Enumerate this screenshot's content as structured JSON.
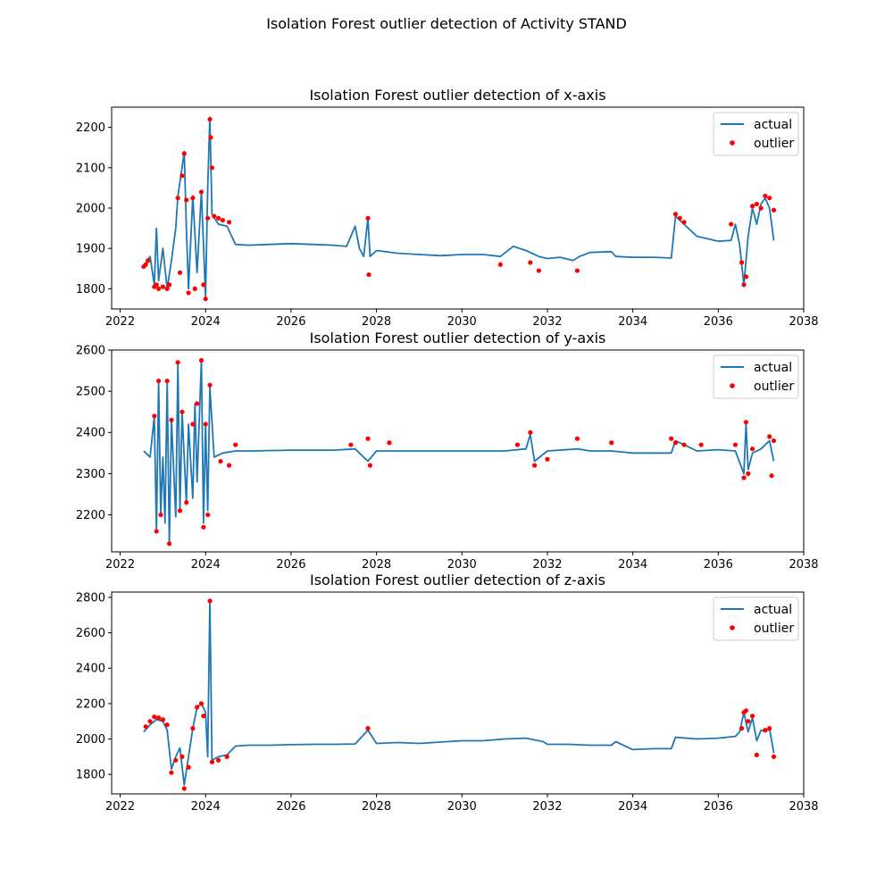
{
  "suptitle": "Isolation Forest outlier detection of Activity STAND",
  "colors": {
    "actual": "#1f77b4",
    "outlier": "#ff0000",
    "axes": "#000000"
  },
  "chart_data": [
    {
      "type": "line",
      "title": "Isolation Forest outlier detection of x-axis",
      "xlabel": "",
      "ylabel": "",
      "xlim": [
        2021.8,
        2038
      ],
      "ylim": [
        1750,
        2250
      ],
      "xticks": [
        2022,
        2024,
        2026,
        2028,
        2030,
        2032,
        2034,
        2036,
        2038
      ],
      "yticks": [
        1800,
        1900,
        2000,
        2100,
        2200
      ],
      "legend": {
        "position": "top-right",
        "entries": [
          "actual",
          "outlier"
        ]
      },
      "grid": false,
      "series": [
        {
          "name": "actual",
          "x": [
            2022.55,
            2022.7,
            2022.8,
            2022.85,
            2022.9,
            2023.0,
            2023.1,
            2023.2,
            2023.3,
            2023.35,
            2023.45,
            2023.5,
            2023.55,
            2023.6,
            2023.7,
            2023.8,
            2023.9,
            2024.0,
            2024.05,
            2024.1,
            2024.15,
            2024.3,
            2024.5,
            2024.7,
            2025.0,
            2025.5,
            2026.0,
            2026.5,
            2027.0,
            2027.3,
            2027.5,
            2027.6,
            2027.7,
            2027.8,
            2027.85,
            2028.0,
            2028.5,
            2029.0,
            2029.5,
            2030.0,
            2030.5,
            2030.9,
            2031.2,
            2031.5,
            2031.8,
            2032.0,
            2032.3,
            2032.6,
            2032.75,
            2033.0,
            2033.5,
            2033.6,
            2034.0,
            2034.5,
            2034.9,
            2035.0,
            2035.2,
            2035.5,
            2036.0,
            2036.3,
            2036.4,
            2036.5,
            2036.6,
            2036.7,
            2036.8,
            2036.9,
            2037.0,
            2037.1,
            2037.2,
            2037.3
          ],
          "y": [
            1855,
            1880,
            1810,
            1950,
            1820,
            1900,
            1800,
            1870,
            1950,
            2030,
            2100,
            2140,
            1950,
            1800,
            2030,
            1840,
            2040,
            1780,
            2050,
            2225,
            1985,
            1960,
            1955,
            1910,
            1908,
            1910,
            1912,
            1910,
            1908,
            1905,
            1955,
            1900,
            1880,
            1975,
            1880,
            1895,
            1888,
            1885,
            1882,
            1885,
            1885,
            1880,
            1905,
            1895,
            1880,
            1875,
            1878,
            1870,
            1880,
            1890,
            1892,
            1880,
            1878,
            1878,
            1876,
            1980,
            1960,
            1930,
            1918,
            1920,
            1960,
            1910,
            1810,
            1930,
            2000,
            1960,
            2010,
            2025,
            2000,
            1920
          ]
        },
        {
          "name": "outlier",
          "x": [
            2022.55,
            2022.6,
            2022.65,
            2022.8,
            2022.85,
            2022.9,
            2023.0,
            2023.1,
            2023.15,
            2023.35,
            2023.4,
            2023.45,
            2023.5,
            2023.55,
            2023.6,
            2023.7,
            2023.75,
            2023.9,
            2023.95,
            2024.0,
            2024.05,
            2024.1,
            2024.12,
            2024.15,
            2024.2,
            2024.3,
            2024.4,
            2024.55,
            2027.8,
            2027.82,
            2030.9,
            2031.6,
            2031.8,
            2032.7,
            2035.0,
            2035.1,
            2035.2,
            2036.3,
            2036.55,
            2036.6,
            2036.65,
            2036.8,
            2036.9,
            2037.0,
            2037.1,
            2037.2,
            2037.3
          ],
          "y": [
            1855,
            1860,
            1870,
            1805,
            1810,
            1800,
            1805,
            1800,
            1810,
            2025,
            1840,
            2080,
            2135,
            2020,
            1790,
            2025,
            1800,
            2040,
            1810,
            1775,
            1975,
            2220,
            2175,
            2100,
            1980,
            1975,
            1970,
            1965,
            1975,
            1835,
            1860,
            1865,
            1845,
            1845,
            1985,
            1975,
            1965,
            1960,
            1865,
            1810,
            1830,
            2005,
            2010,
            2000,
            2030,
            2025,
            1995
          ]
        }
      ]
    },
    {
      "type": "line",
      "title": "Isolation Forest outlier detection of y-axis",
      "xlabel": "",
      "ylabel": "",
      "xlim": [
        2021.8,
        2038
      ],
      "ylim": [
        2110,
        2600
      ],
      "xticks": [
        2022,
        2024,
        2026,
        2028,
        2030,
        2032,
        2034,
        2036,
        2038
      ],
      "yticks": [
        2200,
        2300,
        2400,
        2500,
        2600
      ],
      "legend": {
        "position": "top-right",
        "entries": [
          "actual",
          "outlier"
        ]
      },
      "grid": false,
      "series": [
        {
          "name": "actual",
          "x": [
            2022.55,
            2022.7,
            2022.8,
            2022.85,
            2022.9,
            2022.95,
            2023.0,
            2023.05,
            2023.1,
            2023.15,
            2023.2,
            2023.3,
            2023.35,
            2023.4,
            2023.45,
            2023.55,
            2023.6,
            2023.7,
            2023.75,
            2023.8,
            2023.9,
            2023.95,
            2024.0,
            2024.05,
            2024.1,
            2024.2,
            2024.4,
            2024.7,
            2025.0,
            2026.0,
            2027.0,
            2027.5,
            2027.8,
            2028.0,
            2028.5,
            2029.0,
            2030.0,
            2031.0,
            2031.5,
            2031.6,
            2031.7,
            2032.0,
            2032.7,
            2033.0,
            2033.5,
            2034.0,
            2034.9,
            2035.0,
            2035.5,
            2036.0,
            2036.4,
            2036.6,
            2036.65,
            2036.7,
            2036.8,
            2037.0,
            2037.2,
            2037.3
          ],
          "y": [
            2355,
            2340,
            2440,
            2160,
            2525,
            2200,
            2340,
            2180,
            2525,
            2130,
            2430,
            2195,
            2570,
            2210,
            2450,
            2230,
            2420,
            2240,
            2470,
            2280,
            2575,
            2180,
            2420,
            2210,
            2510,
            2340,
            2350,
            2355,
            2355,
            2357,
            2357,
            2360,
            2330,
            2355,
            2355,
            2355,
            2355,
            2355,
            2360,
            2395,
            2330,
            2355,
            2360,
            2355,
            2355,
            2350,
            2350,
            2380,
            2355,
            2358,
            2355,
            2300,
            2420,
            2310,
            2350,
            2360,
            2380,
            2330
          ]
        },
        {
          "name": "outlier",
          "x": [
            2022.8,
            2022.85,
            2022.9,
            2022.95,
            2023.1,
            2023.15,
            2023.2,
            2023.35,
            2023.4,
            2023.45,
            2023.55,
            2023.7,
            2023.8,
            2023.9,
            2023.95,
            2024.0,
            2024.05,
            2024.1,
            2024.35,
            2024.55,
            2024.7,
            2027.4,
            2027.8,
            2027.85,
            2028.3,
            2031.3,
            2031.6,
            2031.7,
            2032.0,
            2032.7,
            2033.5,
            2034.9,
            2035.0,
            2035.2,
            2035.6,
            2036.4,
            2036.6,
            2036.65,
            2036.7,
            2036.8,
            2037.2,
            2037.25,
            2037.3
          ],
          "y": [
            2440,
            2160,
            2525,
            2200,
            2525,
            2130,
            2430,
            2570,
            2210,
            2450,
            2230,
            2420,
            2470,
            2575,
            2170,
            2420,
            2200,
            2515,
            2330,
            2320,
            2370,
            2370,
            2385,
            2320,
            2375,
            2370,
            2400,
            2320,
            2335,
            2385,
            2375,
            2385,
            2375,
            2370,
            2370,
            2370,
            2290,
            2425,
            2300,
            2360,
            2390,
            2295,
            2380
          ]
        }
      ]
    },
    {
      "type": "line",
      "title": "Isolation Forest outlier detection of z-axis",
      "xlabel": "",
      "ylabel": "",
      "xlim": [
        2021.8,
        2038
      ],
      "ylim": [
        1690,
        2830
      ],
      "xticks": [
        2022,
        2024,
        2026,
        2028,
        2030,
        2032,
        2034,
        2036,
        2038
      ],
      "yticks": [
        1800,
        2000,
        2200,
        2400,
        2600,
        2800
      ],
      "legend": {
        "position": "top-right",
        "entries": [
          "actual",
          "outlier"
        ]
      },
      "grid": false,
      "series": [
        {
          "name": "actual",
          "x": [
            2022.55,
            2022.7,
            2022.85,
            2023.0,
            2023.1,
            2023.2,
            2023.3,
            2023.4,
            2023.5,
            2023.6,
            2023.7,
            2023.8,
            2023.9,
            2024.0,
            2024.05,
            2024.1,
            2024.15,
            2024.3,
            2024.5,
            2024.7,
            2025.0,
            2025.5,
            2026.0,
            2026.5,
            2027.0,
            2027.5,
            2027.8,
            2028.0,
            2028.5,
            2029.0,
            2030.0,
            2030.5,
            2031.0,
            2031.5,
            2031.9,
            2032.0,
            2032.5,
            2033.0,
            2033.5,
            2033.6,
            2034.0,
            2034.5,
            2034.9,
            2035.0,
            2035.5,
            2036.0,
            2036.4,
            2036.5,
            2036.6,
            2036.7,
            2036.8,
            2036.9,
            2037.0,
            2037.1,
            2037.2,
            2037.3
          ],
          "y": [
            2040,
            2080,
            2110,
            2100,
            2050,
            1830,
            1900,
            1950,
            1740,
            1900,
            2060,
            2180,
            2200,
            2150,
            1900,
            2780,
            1880,
            1900,
            1910,
            1960,
            1965,
            1965,
            1968,
            1970,
            1970,
            1972,
            2050,
            1975,
            1980,
            1975,
            1990,
            1990,
            2000,
            2005,
            1985,
            1970,
            1970,
            1965,
            1965,
            1985,
            1940,
            1945,
            1945,
            2010,
            2000,
            2005,
            2015,
            2040,
            2150,
            2040,
            2120,
            1990,
            2050,
            2040,
            2060,
            1920
          ]
        },
        {
          "name": "outlier",
          "x": [
            2022.6,
            2022.7,
            2022.8,
            2022.9,
            2023.0,
            2023.1,
            2023.2,
            2023.3,
            2023.45,
            2023.5,
            2023.6,
            2023.7,
            2023.8,
            2023.9,
            2023.95,
            2024.1,
            2024.15,
            2024.3,
            2024.5,
            2027.8,
            2036.55,
            2036.6,
            2036.65,
            2036.7,
            2036.8,
            2036.9,
            2037.1,
            2037.2,
            2037.3
          ],
          "y": [
            2070,
            2100,
            2125,
            2120,
            2110,
            2080,
            1810,
            1880,
            1900,
            1720,
            1840,
            2060,
            2180,
            2200,
            2130,
            2780,
            1870,
            1880,
            1900,
            2060,
            2060,
            2150,
            2160,
            2100,
            2130,
            1910,
            2050,
            2060,
            1900
          ]
        }
      ]
    }
  ]
}
